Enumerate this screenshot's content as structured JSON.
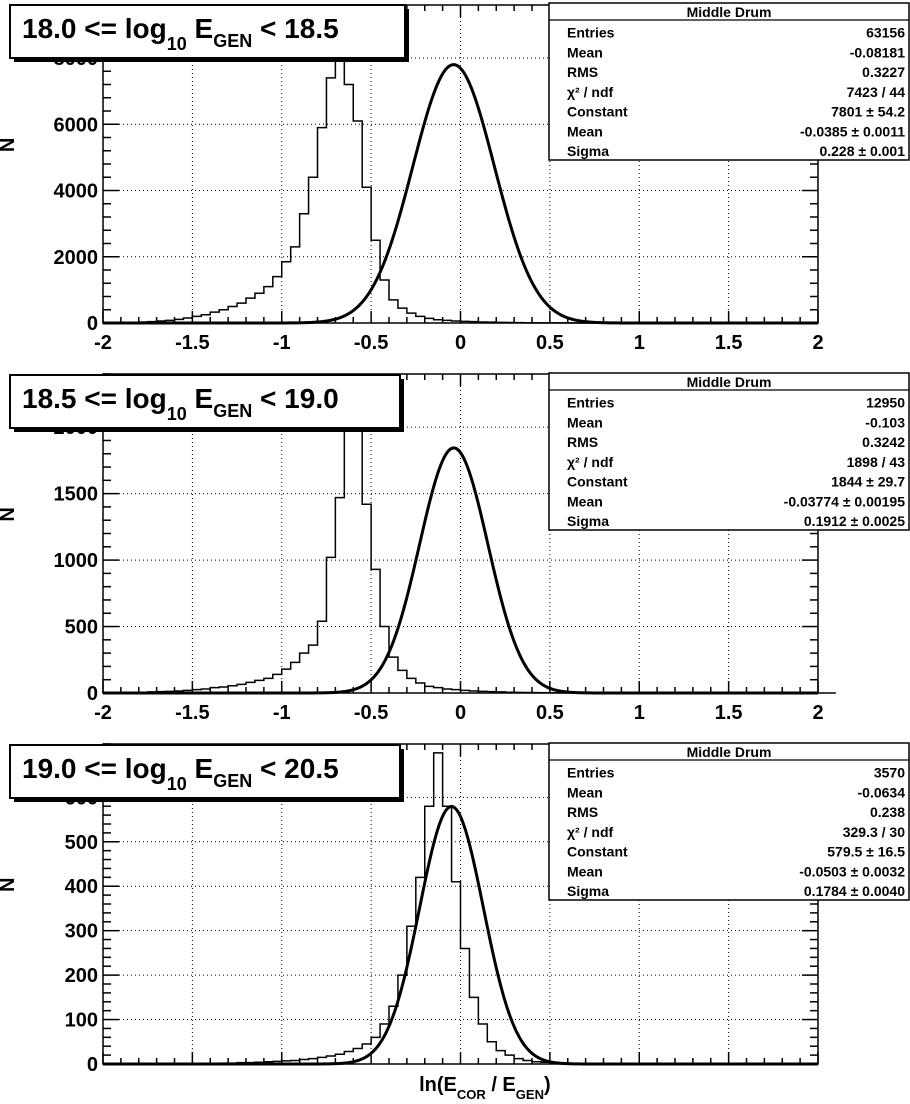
{
  "chart_data": [
    {
      "type": "bar",
      "title": "18.0 <= log10 EGEN < 18.5",
      "title_parts": {
        "pre": "18.0 <= log",
        "sub1": "10",
        "mid": " E",
        "sub2": "GEN",
        "post": " < 18.5"
      },
      "ylabel": "N",
      "xlabel": "",
      "xlim": [
        -2,
        2
      ],
      "ylim": [
        0,
        9600
      ],
      "yticks": [
        0,
        2000,
        4000,
        6000,
        8000
      ],
      "ytick_labels": [
        "0",
        "2000",
        "4000",
        "6000",
        "8000"
      ],
      "xticks": [
        -2,
        -1.5,
        -1,
        -0.5,
        0,
        0.5,
        1,
        1.5,
        2
      ],
      "xtick_labels": [
        "-2",
        "-1.5",
        "-1",
        "-0.5",
        "0",
        "0.5",
        "1",
        "1.5",
        "2"
      ],
      "grid": true,
      "bin_edges_start": -2,
      "bin_width": 0.1,
      "hist_values": [
        0,
        0,
        0,
        0,
        0,
        0,
        0,
        0,
        0,
        0,
        0,
        0,
        0,
        0,
        0,
        0,
        0,
        0,
        0,
        0,
        0,
        0,
        0,
        0,
        0,
        0,
        0,
        0,
        0,
        0,
        0,
        0,
        0,
        0,
        0,
        0,
        0,
        0,
        0,
        0,
        0,
        0,
        0,
        0,
        0,
        0,
        0,
        0,
        0,
        0,
        0,
        0,
        0,
        0,
        0,
        0,
        0,
        0,
        0,
        0,
        0,
        0,
        0,
        0,
        0,
        0,
        0,
        0,
        0,
        0,
        0,
        0,
        0,
        0,
        0,
        0,
        0,
        0,
        0,
        0
      ],
      "hist": {
        "start": -2.0,
        "width": 0.05,
        "values": [
          5,
          10,
          15,
          20,
          30,
          40,
          60,
          80,
          110,
          150,
          200,
          250,
          330,
          400,
          500,
          600,
          750,
          900,
          1100,
          1400,
          1850,
          2300,
          3300,
          4400,
          5900,
          7400,
          9300,
          7200,
          6100,
          4100,
          2500,
          1300,
          700,
          450,
          300,
          200,
          140,
          100,
          80,
          60,
          50,
          40,
          30,
          25,
          20,
          15,
          10,
          8,
          5,
          4,
          3,
          2,
          2,
          1,
          1,
          1,
          0,
          0,
          0,
          0,
          0,
          0,
          0,
          0,
          0,
          0,
          0,
          0,
          0,
          0,
          0,
          0,
          0,
          0,
          0,
          0,
          0,
          0,
          0,
          0
        ]
      },
      "fit": {
        "constant": 7801,
        "mean": -0.0385,
        "sigma": 0.228
      },
      "stats": {
        "header": "Middle Drum",
        "rows": [
          {
            "label": "Entries",
            "value": "63156"
          },
          {
            "label": "Mean",
            "value": "-0.08181"
          },
          {
            "label": "RMS",
            "value": "0.3227"
          },
          {
            "label": "χ² / ndf",
            "value": "7423 / 44"
          },
          {
            "label": "Constant",
            "value": "7801 ± 54.2"
          },
          {
            "label": "Mean",
            "value": "-0.0385 ± 0.0011"
          },
          {
            "label": "Sigma",
            "value": "0.228 ± 0.001"
          }
        ]
      }
    },
    {
      "type": "bar",
      "title": "18.5 <= log10 EGEN < 19.0",
      "title_parts": {
        "pre": "18.5 <= log",
        "sub1": "10",
        "mid": " E",
        "sub2": "GEN",
        "post": " < 19.0"
      },
      "ylabel": "N",
      "xlabel": "",
      "xlim": [
        -2,
        2
      ],
      "ylim": [
        0,
        2400
      ],
      "yticks": [
        0,
        500,
        1000,
        1500,
        2000
      ],
      "ytick_labels": [
        "0",
        "500",
        "1000",
        "1500",
        "2000"
      ],
      "xticks": [
        -2,
        -1.5,
        -1,
        -0.5,
        0,
        0.5,
        1,
        1.5,
        2
      ],
      "xtick_labels": [
        "-2",
        "-1.5",
        "-1",
        "-0.5",
        "0",
        "0.5",
        "1",
        "1.5",
        "2"
      ],
      "grid": true,
      "hist": {
        "start": -2.0,
        "width": 0.05,
        "values": [
          2,
          3,
          4,
          5,
          6,
          8,
          10,
          12,
          15,
          20,
          25,
          30,
          40,
          45,
          55,
          65,
          80,
          95,
          110,
          140,
          180,
          230,
          300,
          360,
          540,
          1020,
          1470,
          2180,
          2040,
          1420,
          930,
          500,
          270,
          170,
          110,
          75,
          50,
          40,
          30,
          25,
          20,
          15,
          12,
          10,
          8,
          6,
          5,
          4,
          3,
          2,
          2,
          1,
          1,
          1,
          1,
          0,
          0,
          0,
          0,
          0,
          0,
          0,
          0,
          0,
          0,
          0,
          0,
          0,
          0,
          0,
          0,
          0,
          0,
          0,
          0,
          0,
          0,
          0,
          0,
          0,
          0,
          0
        ]
      },
      "fit": {
        "constant": 1844,
        "mean": -0.03774,
        "sigma": 0.1912
      },
      "stats": {
        "header": "Middle Drum",
        "rows": [
          {
            "label": "Entries",
            "value": "12950"
          },
          {
            "label": "Mean",
            "value": "-0.103"
          },
          {
            "label": "RMS",
            "value": "0.3242"
          },
          {
            "label": "χ² / ndf",
            "value": "1898 / 43"
          },
          {
            "label": "Constant",
            "value": "1844 ± 29.7"
          },
          {
            "label": "Mean",
            "value": "-0.03774 ± 0.00195"
          },
          {
            "label": "Sigma",
            "value": "0.1912 ± 0.0025"
          }
        ]
      }
    },
    {
      "type": "bar",
      "title": "19.0 <= log10 EGEN < 20.5",
      "title_parts": {
        "pre": "19.0 <= log",
        "sub1": "10",
        "mid": " E",
        "sub2": "GEN",
        "post": " < 20.5"
      },
      "ylabel": "N",
      "xlabel": "ln(ECOR / EGEN)",
      "xlabel_parts": {
        "pre": "ln(E",
        "sub1": "COR",
        "mid": " / E",
        "sub2": "GEN",
        "post": ")"
      },
      "xlim": [
        -2,
        2
      ],
      "ylim": [
        0,
        720
      ],
      "yticks": [
        0,
        100,
        200,
        300,
        400,
        500,
        600
      ],
      "ytick_labels": [
        "0",
        "100",
        "200",
        "300",
        "400",
        "500",
        "600"
      ],
      "xticks": [],
      "xtick_labels": [],
      "grid": true,
      "hist": {
        "start": -2.0,
        "width": 0.05,
        "values": [
          0,
          0,
          0,
          0,
          0,
          0,
          0,
          0,
          0,
          0,
          0,
          1,
          1,
          2,
          2,
          3,
          3,
          4,
          5,
          6,
          7,
          8,
          10,
          12,
          15,
          18,
          22,
          28,
          35,
          45,
          60,
          90,
          130,
          200,
          310,
          420,
          580,
          700,
          580,
          410,
          260,
          150,
          90,
          50,
          30,
          20,
          12,
          8,
          5,
          4,
          3,
          2,
          1,
          1,
          1,
          0,
          0,
          0,
          0,
          0,
          0,
          0,
          0,
          0,
          0,
          0,
          0,
          0,
          0,
          0,
          0,
          0,
          0,
          0,
          0,
          0,
          0,
          0,
          0,
          0
        ]
      },
      "fit": {
        "constant": 579.5,
        "mean": -0.0503,
        "sigma": 0.1784
      },
      "stats": {
        "header": "Middle Drum",
        "rows": [
          {
            "label": "Entries",
            "value": "3570"
          },
          {
            "label": "Mean",
            "value": "-0.0634"
          },
          {
            "label": "RMS",
            "value": "0.238"
          },
          {
            "label": "χ² / ndf",
            "value": "329.3 / 30"
          },
          {
            "label": "Constant",
            "value": "579.5 ± 16.5"
          },
          {
            "label": "Mean",
            "value": "-0.0503 ± 0.0032"
          },
          {
            "label": "Sigma",
            "value": "0.1784 ± 0.0040"
          }
        ]
      }
    }
  ]
}
